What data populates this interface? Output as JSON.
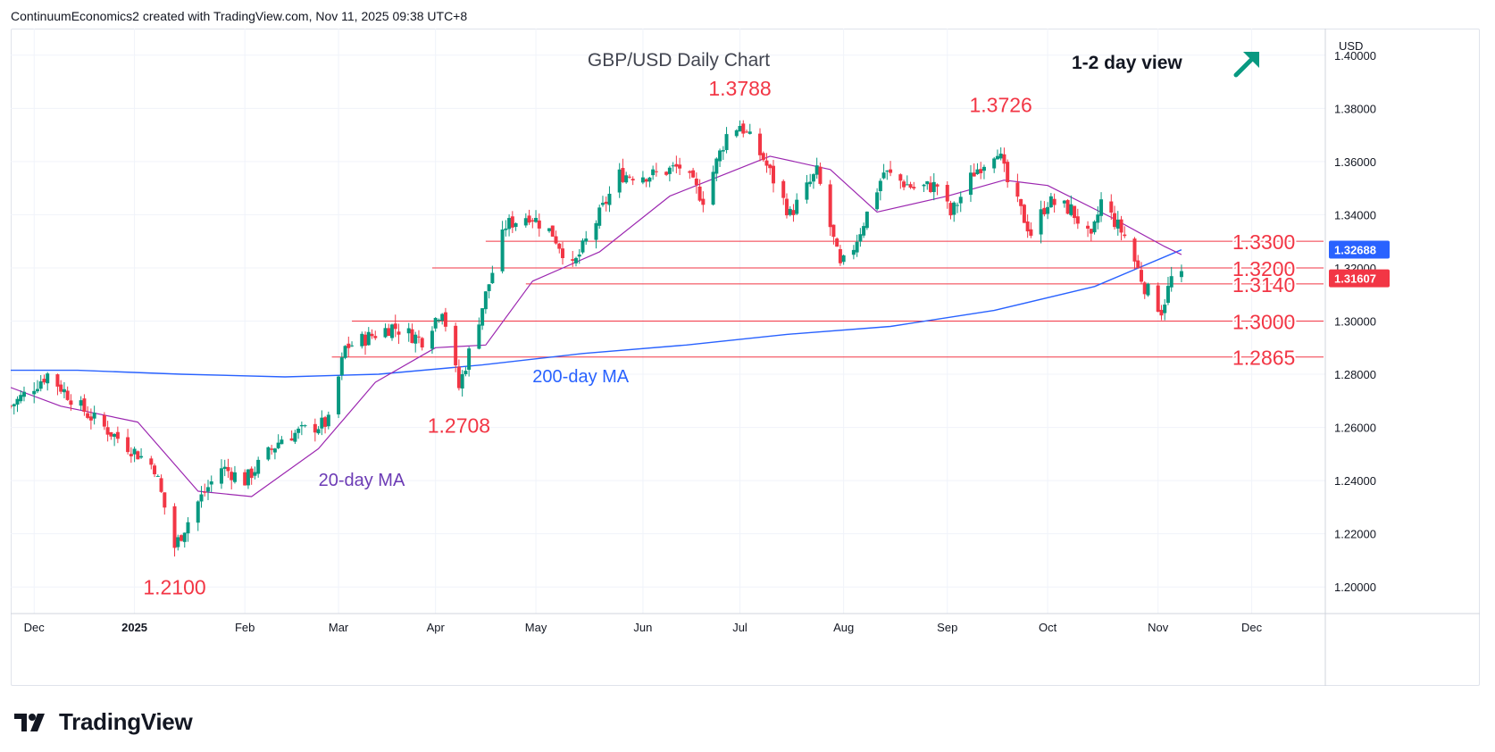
{
  "header": {
    "text": "ContinuumEconomics2 created with TradingView.com, Nov 11, 2025 09:38 UTC+8"
  },
  "footer": {
    "brand": "TradingView"
  },
  "colors": {
    "up": "#089981",
    "down": "#f23645",
    "level_line": "#f23645",
    "ma20": "#9c27b0",
    "ma200": "#2962ff",
    "grid": "#f0f3fa",
    "arrow": "#089981",
    "axis_text": "#131722"
  },
  "chart_data": {
    "type": "candlestick",
    "title": "GBP/USD Daily Chart",
    "subtitle": "1-2 day view",
    "view_direction_icon": "arrow-up-right-icon",
    "currency": "USD",
    "ylim": [
      1.19,
      1.41
    ],
    "yticks": [
      "1.40000",
      "1.38000",
      "1.36000",
      "1.34000",
      "1.32000",
      "1.30000",
      "1.28000",
      "1.26000",
      "1.24000",
      "1.22000",
      "1.20000"
    ],
    "ytick_values": [
      1.4,
      1.38,
      1.36,
      1.34,
      1.32,
      1.3,
      1.28,
      1.26,
      1.24,
      1.22,
      1.2
    ],
    "x_range": [
      "2024-11-25",
      "2025-12-23"
    ],
    "xticks": [
      {
        "label": "Dec",
        "date": "2024-12-02",
        "bold": false
      },
      {
        "label": "2025",
        "date": "2025-01-01",
        "bold": true
      },
      {
        "label": "Feb",
        "date": "2025-02-03",
        "bold": false
      },
      {
        "label": "Mar",
        "date": "2025-03-03",
        "bold": false
      },
      {
        "label": "Apr",
        "date": "2025-04-01",
        "bold": false
      },
      {
        "label": "May",
        "date": "2025-05-01",
        "bold": false
      },
      {
        "label": "Jun",
        "date": "2025-06-02",
        "bold": false
      },
      {
        "label": "Jul",
        "date": "2025-07-01",
        "bold": false
      },
      {
        "label": "Aug",
        "date": "2025-08-01",
        "bold": false
      },
      {
        "label": "Sep",
        "date": "2025-09-01",
        "bold": false
      },
      {
        "label": "Oct",
        "date": "2025-10-01",
        "bold": false
      },
      {
        "label": "Nov",
        "date": "2025-11-03",
        "bold": false
      },
      {
        "label": "Dec",
        "date": "2025-12-01",
        "bold": false
      }
    ],
    "price_path": [
      [
        "2024-11-25",
        1.268
      ],
      [
        "2024-12-06",
        1.28
      ],
      [
        "2024-12-18",
        1.265
      ],
      [
        "2024-12-31",
        1.252
      ],
      [
        "2025-01-07",
        1.245
      ],
      [
        "2025-01-13",
        1.215
      ],
      [
        "2025-01-20",
        1.232
      ],
      [
        "2025-01-27",
        1.245
      ],
      [
        "2025-02-03",
        1.24
      ],
      [
        "2025-02-14",
        1.256
      ],
      [
        "2025-02-28",
        1.262
      ],
      [
        "2025-03-05",
        1.29
      ],
      [
        "2025-03-19",
        1.298
      ],
      [
        "2025-03-28",
        1.293
      ],
      [
        "2025-04-03",
        1.305
      ],
      [
        "2025-04-08",
        1.275
      ],
      [
        "2025-04-11",
        1.288
      ],
      [
        "2025-04-22",
        1.336
      ],
      [
        "2025-04-29",
        1.34
      ],
      [
        "2025-05-06",
        1.333
      ],
      [
        "2025-05-12",
        1.32
      ],
      [
        "2025-05-20",
        1.34
      ],
      [
        "2025-05-26",
        1.355
      ],
      [
        "2025-06-05",
        1.355
      ],
      [
        "2025-06-13",
        1.358
      ],
      [
        "2025-06-20",
        1.346
      ],
      [
        "2025-06-27",
        1.37
      ],
      [
        "2025-07-01",
        1.374
      ],
      [
        "2025-07-08",
        1.361
      ],
      [
        "2025-07-16",
        1.34
      ],
      [
        "2025-07-24",
        1.356
      ],
      [
        "2025-07-31",
        1.32
      ],
      [
        "2025-08-04",
        1.328
      ],
      [
        "2025-08-13",
        1.356
      ],
      [
        "2025-08-22",
        1.35
      ],
      [
        "2025-08-29",
        1.351
      ],
      [
        "2025-09-02",
        1.34
      ],
      [
        "2025-09-09",
        1.356
      ],
      [
        "2025-09-16",
        1.365
      ],
      [
        "2025-09-19",
        1.352
      ],
      [
        "2025-09-26",
        1.333
      ],
      [
        "2025-10-01",
        1.345
      ],
      [
        "2025-10-08",
        1.342
      ],
      [
        "2025-10-14",
        1.33
      ],
      [
        "2025-10-17",
        1.345
      ],
      [
        "2025-10-24",
        1.332
      ],
      [
        "2025-10-30",
        1.313
      ],
      [
        "2025-11-04",
        1.304
      ],
      [
        "2025-11-07",
        1.316
      ],
      [
        "2025-11-10",
        1.3161
      ]
    ],
    "ma20_path": [
      [
        "2024-11-25",
        1.275
      ],
      [
        "2024-12-10",
        1.268
      ],
      [
        "2025-01-02",
        1.262
      ],
      [
        "2025-01-20",
        1.236
      ],
      [
        "2025-02-05",
        1.234
      ],
      [
        "2025-02-25",
        1.252
      ],
      [
        "2025-03-14",
        1.277
      ],
      [
        "2025-04-01",
        1.29
      ],
      [
        "2025-04-16",
        1.291
      ],
      [
        "2025-04-30",
        1.315
      ],
      [
        "2025-05-20",
        1.326
      ],
      [
        "2025-06-10",
        1.347
      ],
      [
        "2025-06-28",
        1.356
      ],
      [
        "2025-07-10",
        1.362
      ],
      [
        "2025-07-28",
        1.357
      ],
      [
        "2025-08-11",
        1.341
      ],
      [
        "2025-09-01",
        1.347
      ],
      [
        "2025-09-18",
        1.353
      ],
      [
        "2025-10-01",
        1.351
      ],
      [
        "2025-10-20",
        1.339
      ],
      [
        "2025-11-05",
        1.328
      ],
      [
        "2025-11-10",
        1.325
      ]
    ],
    "ma200_path": [
      [
        "2024-11-25",
        1.2815
      ],
      [
        "2024-12-15",
        1.2815
      ],
      [
        "2025-01-15",
        1.28
      ],
      [
        "2025-02-15",
        1.279
      ],
      [
        "2025-03-15",
        1.28
      ],
      [
        "2025-04-15",
        1.2835
      ],
      [
        "2025-05-15",
        1.2878
      ],
      [
        "2025-06-15",
        1.291
      ],
      [
        "2025-07-15",
        1.295
      ],
      [
        "2025-08-15",
        1.298
      ],
      [
        "2025-09-15",
        1.304
      ],
      [
        "2025-10-15",
        1.313
      ],
      [
        "2025-11-10",
        1.3268
      ]
    ],
    "levels": [
      {
        "label": "1.3300",
        "value": 1.33,
        "from": "2025-04-16"
      },
      {
        "label": "1.3200",
        "value": 1.32,
        "from": "2025-03-31"
      },
      {
        "label": "1.3140",
        "value": 1.314,
        "from": "2025-04-28"
      },
      {
        "label": "1.3000",
        "value": 1.3,
        "from": "2025-03-07"
      },
      {
        "label": "1.2865",
        "value": 1.2865,
        "from": "2025-03-01"
      }
    ],
    "price_badges": [
      {
        "label": "1.32688",
        "value": 1.32688,
        "color": "#2962ff"
      },
      {
        "label": "1.31607",
        "value": 1.31607,
        "color": "#f23645"
      }
    ],
    "annotations": [
      {
        "text": "1.3788",
        "date": "2025-07-01",
        "value": 1.3788,
        "color": "#f23645",
        "kind": "high"
      },
      {
        "text": "1.3726",
        "date": "2025-09-17",
        "value": 1.3726,
        "color": "#f23645",
        "kind": "high"
      },
      {
        "text": "1.2708",
        "date": "2025-04-08",
        "value": 1.2708,
        "color": "#f23645",
        "kind": "low"
      },
      {
        "text": "1.2100",
        "date": "2025-01-13",
        "value": 1.21,
        "color": "#f23645",
        "kind": "low"
      },
      {
        "text": "200-day MA",
        "date": "2025-04-30",
        "value": 1.277,
        "color": "#2962ff",
        "kind": "label"
      },
      {
        "text": "20-day MA",
        "date": "2025-02-25",
        "value": 1.238,
        "color": "#6c3bb5",
        "kind": "label"
      }
    ]
  }
}
